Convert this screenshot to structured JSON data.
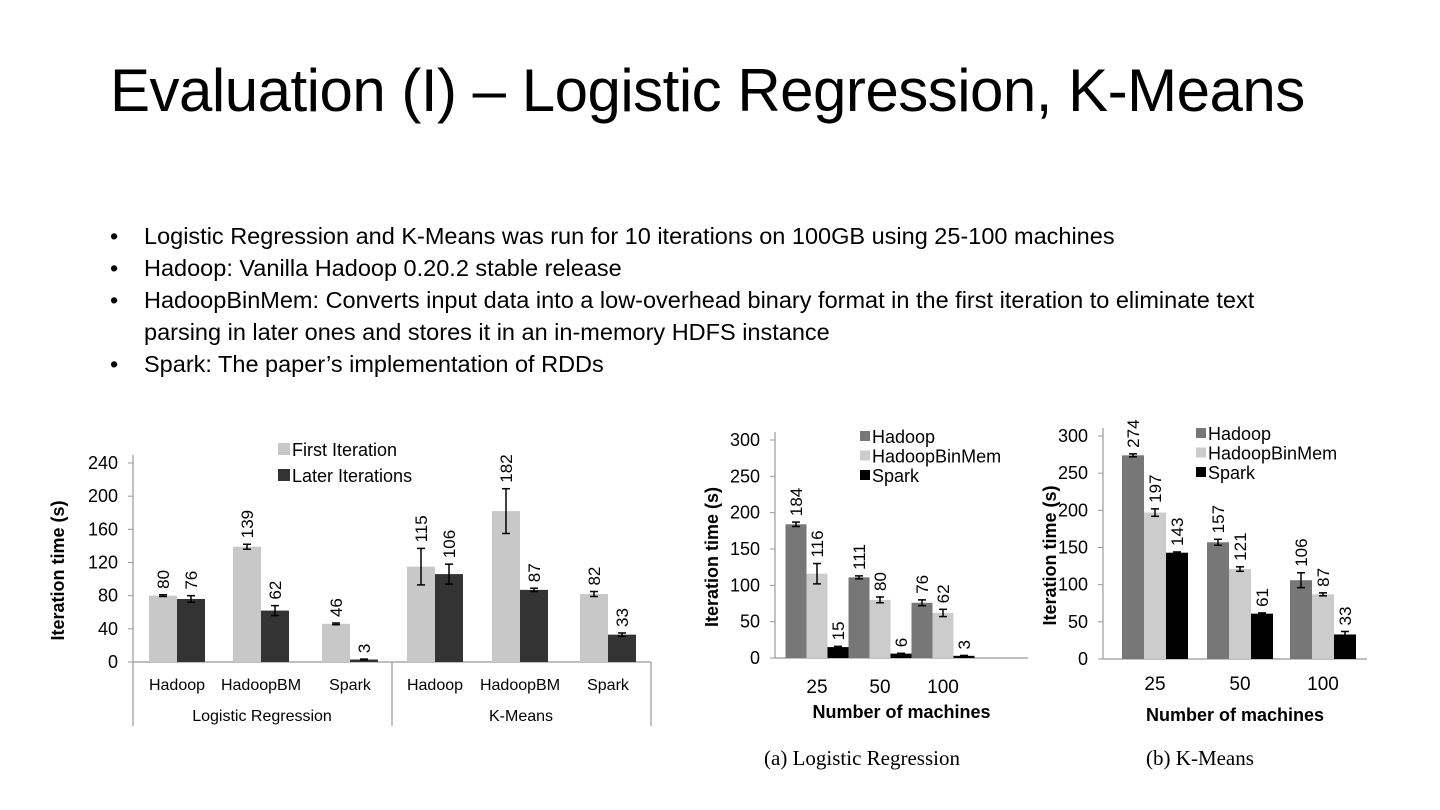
{
  "slide": {
    "title": "Evaluation (I) – Logistic Regression, K-Means",
    "bullets": [
      "Logistic Regression and K-Means was run for 10 iterations on 100GB using 25-100 machines",
      "Hadoop: Vanilla Hadoop 0.20.2 stable release",
      "HadoopBinMem: Converts input data into a low-overhead binary format in the first iteration to eliminate text parsing in later ones and stores it in an in-memory HDFS instance",
      "Spark: The paper’s implementation of RDDs"
    ],
    "bullet_symbol": "•"
  },
  "chart_data": [
    {
      "type": "bar",
      "title": "",
      "xlabel": "",
      "ylabel": "Iteration time (s)",
      "ylim": [
        0,
        240
      ],
      "yticks": [
        0,
        40,
        80,
        120,
        160,
        200,
        240
      ],
      "groups": [
        "Logistic Regression",
        "K-Means"
      ],
      "categories": [
        "Hadoop",
        "HadoopBM",
        "Spark",
        "Hadoop",
        "HadoopBM",
        "Spark"
      ],
      "series": [
        {
          "name": "First Iteration",
          "color": "#c8c8c8",
          "values": [
            80,
            139,
            46,
            115,
            182,
            82
          ],
          "errors": [
            1,
            3,
            1,
            22,
            27,
            3
          ]
        },
        {
          "name": "Later Iterations",
          "color": "#333333",
          "values": [
            76,
            62,
            3,
            106,
            87,
            33
          ],
          "errors": [
            4,
            6,
            0.5,
            12,
            2,
            2
          ]
        }
      ],
      "legend": "top-center"
    },
    {
      "type": "bar",
      "title": "",
      "caption": "(a) Logistic Regression",
      "xlabel": "Number of machines",
      "ylabel": "Iteration time (s)",
      "ylim": [
        0,
        300
      ],
      "yticks": [
        0,
        50,
        100,
        150,
        200,
        250,
        300
      ],
      "categories": [
        "25",
        "50",
        "100"
      ],
      "series": [
        {
          "name": "Hadoop",
          "color": "#777777",
          "values": [
            184,
            111,
            76
          ],
          "errors": [
            3,
            2,
            4
          ]
        },
        {
          "name": "HadoopBinMem",
          "color": "#cccccc",
          "values": [
            116,
            80,
            62
          ],
          "errors": [
            14,
            4,
            5
          ]
        },
        {
          "name": "Spark",
          "color": "#000000",
          "values": [
            15,
            6,
            3
          ],
          "errors": [
            1,
            0.5,
            0.5
          ]
        }
      ],
      "legend": "top-right"
    },
    {
      "type": "bar",
      "title": "",
      "caption": "(b) K-Means",
      "xlabel": "Number of machines",
      "ylabel": "Iteration time (s)",
      "ylim": [
        0,
        300
      ],
      "yticks": [
        0,
        50,
        100,
        150,
        200,
        250,
        300
      ],
      "categories": [
        "25",
        "50",
        "100"
      ],
      "series": [
        {
          "name": "Hadoop",
          "color": "#777777",
          "values": [
            274,
            157,
            106
          ],
          "errors": [
            2,
            4,
            10
          ]
        },
        {
          "name": "HadoopBinMem",
          "color": "#cccccc",
          "values": [
            197,
            121,
            87
          ],
          "errors": [
            5,
            3,
            2
          ]
        },
        {
          "name": "Spark",
          "color": "#000000",
          "values": [
            143,
            61,
            33
          ],
          "errors": [
            1,
            1,
            4
          ]
        }
      ],
      "legend": "top-right"
    }
  ]
}
